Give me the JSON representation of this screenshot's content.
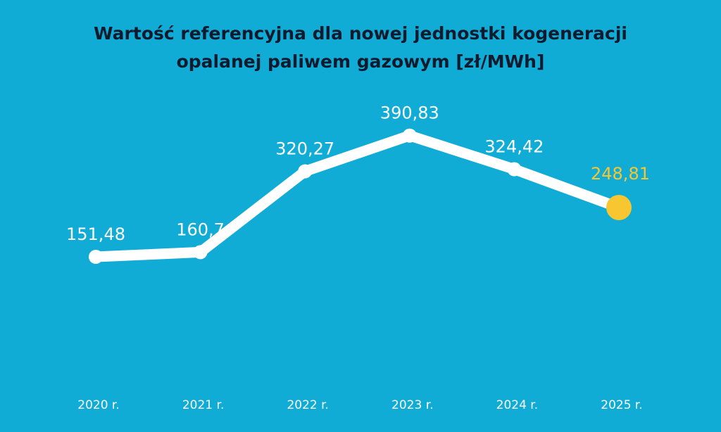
{
  "chart_data": {
    "type": "line",
    "title_lines": [
      "Wartość referencyjna dla nowej jednostki kogeneracji",
      "opalanej paliwem gazowym [zł/MWh]"
    ],
    "categories": [
      "2020 r.",
      "2021 r.",
      "2022 r.",
      "2023 r.",
      "2024 r.",
      "2025 r."
    ],
    "values": [
      151.48,
      160.7,
      320.27,
      390.83,
      324.42,
      248.81
    ],
    "value_labels": [
      "151,48",
      "160,7",
      "320,27",
      "390,83",
      "324,42",
      "248,81"
    ],
    "highlight_index": 5,
    "xlabel": "",
    "ylabel": "",
    "grid": false,
    "legend": "none",
    "colors": {
      "background": "#11acd6",
      "line": "#ffffff",
      "highlight": "#f7c631",
      "title": "#0d1b2e"
    }
  }
}
